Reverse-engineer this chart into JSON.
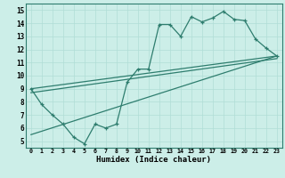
{
  "xlabel": "Humidex (Indice chaleur)",
  "bg_color": "#cceee8",
  "line_color": "#2e7d6e",
  "grid_color": "#b0ddd6",
  "xlim": [
    -0.5,
    23.5
  ],
  "ylim": [
    4.5,
    15.5
  ],
  "main_x": [
    0,
    1,
    2,
    3,
    4,
    5,
    6,
    7,
    8,
    9,
    10,
    11,
    12,
    13,
    14,
    15,
    16,
    17,
    18,
    19,
    20,
    21,
    22,
    23
  ],
  "main_y": [
    9.0,
    7.8,
    7.0,
    6.3,
    5.3,
    4.8,
    6.3,
    6.0,
    6.3,
    9.5,
    10.5,
    10.5,
    13.9,
    13.9,
    13.0,
    14.5,
    14.1,
    14.4,
    14.9,
    14.3,
    14.2,
    12.8,
    12.1,
    11.5
  ],
  "trend1_x": [
    0,
    23
  ],
  "trend1_y": [
    9.0,
    11.5
  ],
  "trend2_x": [
    0,
    23
  ],
  "trend2_y": [
    8.7,
    11.3
  ],
  "trend3_x": [
    0,
    23
  ],
  "trend3_y": [
    5.5,
    11.5
  ],
  "xticks": [
    0,
    1,
    2,
    3,
    4,
    5,
    6,
    7,
    8,
    9,
    10,
    11,
    12,
    13,
    14,
    15,
    16,
    17,
    18,
    19,
    20,
    21,
    22,
    23
  ],
  "yticks": [
    5,
    6,
    7,
    8,
    9,
    10,
    11,
    12,
    13,
    14,
    15
  ]
}
